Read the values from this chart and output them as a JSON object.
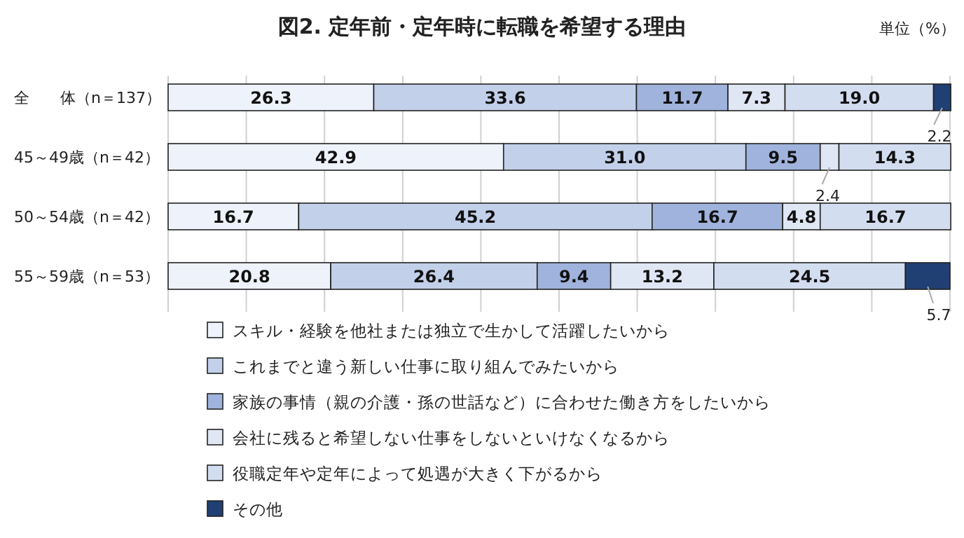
{
  "chart_data": {
    "type": "bar",
    "orientation": "horizontal",
    "stacked": true,
    "title": "図2. 定年前・定年時に転職を希望する理由",
    "annotations": [
      "単位（%）"
    ],
    "categories": [
      "全　　体（n＝137）",
      "45～49歳（n＝42）",
      "50～54歳（n＝42）",
      "55～59歳（n＝53）"
    ],
    "xlim": [
      0,
      100
    ],
    "xticks": [
      {
        "value": 0,
        "label": null
      },
      {
        "value": 10,
        "label": null
      },
      {
        "value": 20,
        "label": null
      },
      {
        "value": 30,
        "label": null
      },
      {
        "value": 40,
        "label": null
      },
      {
        "value": 50,
        "label": null
      },
      {
        "value": 60,
        "label": null
      },
      {
        "value": 70,
        "label": null
      },
      {
        "value": 80,
        "label": null
      },
      {
        "value": 90,
        "label": null
      },
      {
        "value": 100,
        "label": null
      }
    ],
    "grid": "x",
    "tick_labels": "y",
    "legend": "bottom",
    "series": [
      {
        "name": "スキル・経験を他社または独立で生かして活躍したいから",
        "color": "#eef2fa",
        "values": [
          26.3,
          42.9,
          16.7,
          20.8
        ],
        "value_labels": [
          "26.3",
          "42.9",
          "16.7",
          "20.8"
        ]
      },
      {
        "name": "これまでと違う新しい仕事に取り組んでみたいから",
        "color": "#c3d0ea",
        "values": [
          33.6,
          31.0,
          45.2,
          26.4
        ],
        "value_labels": [
          "33.6",
          "31.0",
          "45.2",
          "26.4"
        ]
      },
      {
        "name": "家族の事情（親の介護・孫の世話など）に合わせた働き方をしたいから",
        "color": "#9fb3dc",
        "values": [
          11.7,
          9.5,
          16.7,
          9.4
        ],
        "value_labels": [
          "11.7",
          "9.5",
          "16.7",
          "9.4"
        ]
      },
      {
        "name": "会社に残ると希望しない仕事をしないといけなくなるから",
        "color": "#dfe6f4",
        "values": [
          7.3,
          2.4,
          4.8,
          13.2
        ],
        "value_labels": [
          "7.3",
          "2.4",
          "4.8",
          "13.2"
        ]
      },
      {
        "name": "役職定年や定年によって処遇が大きく下がるから",
        "color": "#d3ddf0",
        "values": [
          19.0,
          14.3,
          16.7,
          24.5
        ],
        "value_labels": [
          "19.0",
          "14.3",
          "16.7",
          "24.5"
        ]
      },
      {
        "name": "その他",
        "color": "#203f73",
        "values": [
          2.2,
          null,
          null,
          5.7
        ],
        "value_labels": [
          "2.2",
          null,
          null,
          "5.7"
        ]
      }
    ]
  }
}
